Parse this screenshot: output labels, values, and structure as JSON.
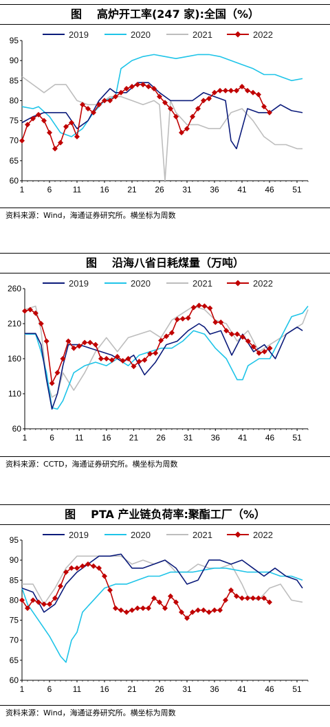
{
  "colors": {
    "2019": "#0a1a7a",
    "2020": "#1ec4e8",
    "2021": "#bdbdbd",
    "2022": "#c00000"
  },
  "chart_data": [
    {
      "type": "line",
      "figure_label": "图",
      "title": "高炉开工率(247 家):全国（%）",
      "source": "资料来源：Wind，海通证券研究所。横坐标为周数",
      "ylim": [
        60,
        95
      ],
      "yticks": [
        "60",
        "65",
        "70",
        "75",
        "80",
        "85",
        "90",
        "95"
      ],
      "xlim": [
        1,
        53
      ],
      "xticks": [
        "1",
        "6",
        "11",
        "16",
        "21",
        "26",
        "31",
        "36",
        "41",
        "46",
        "51"
      ],
      "legend": [
        "2019",
        "2020",
        "2021",
        "2022"
      ],
      "series": [
        {
          "name": "2019",
          "x": [
            1,
            3,
            5,
            7,
            9,
            11,
            13,
            15,
            17,
            18,
            20,
            22,
            24,
            26,
            28,
            30,
            32,
            34,
            36,
            38,
            39,
            40,
            42,
            44,
            46,
            48,
            50,
            52
          ],
          "y": [
            74.5,
            76,
            77,
            77,
            77,
            73,
            75,
            80,
            83,
            82,
            82,
            84.5,
            84.5,
            82,
            80,
            80,
            80,
            82,
            81,
            80,
            70,
            68,
            78,
            77,
            77,
            79,
            77.5,
            77
          ]
        },
        {
          "name": "2020",
          "x": [
            1,
            3,
            4,
            6,
            8,
            10,
            12,
            14,
            16,
            18,
            19,
            21,
            23,
            25,
            27,
            29,
            31,
            33,
            35,
            37,
            39,
            41,
            43,
            45,
            47,
            49,
            50,
            52
          ],
          "y": [
            78.5,
            78,
            78.5,
            76,
            72,
            71,
            73,
            77,
            80,
            81,
            88,
            90,
            91,
            91.5,
            91,
            90.5,
            91,
            91.5,
            91.5,
            91,
            90,
            89,
            88,
            86.5,
            86.5,
            85.5,
            85,
            85.5
          ]
        },
        {
          "name": "2021",
          "x": [
            1,
            3,
            5,
            7,
            9,
            11,
            13,
            15,
            17,
            19,
            21,
            23,
            25,
            26,
            27,
            28,
            29,
            31,
            33,
            35,
            37,
            39,
            41,
            43,
            45,
            47,
            49,
            51,
            52
          ],
          "y": [
            86,
            84,
            82,
            84,
            84,
            80,
            79,
            79,
            81,
            81,
            80,
            79,
            80,
            79,
            60,
            80,
            77,
            74,
            74,
            73,
            73,
            77,
            78,
            75,
            71,
            69,
            69,
            68,
            68
          ]
        },
        {
          "name": "2022",
          "x": [
            1,
            2,
            3,
            4,
            5,
            6,
            7,
            8,
            9,
            10,
            11,
            12,
            13,
            14,
            15,
            16,
            17,
            18,
            19,
            20,
            21,
            22,
            23,
            24,
            25,
            26,
            27,
            28,
            29,
            30,
            31,
            32,
            33,
            34,
            35,
            36,
            37,
            38,
            39,
            40,
            41,
            42,
            43,
            44,
            45,
            46
          ],
          "y": [
            70,
            74,
            75.5,
            76.5,
            75,
            72,
            68,
            69.5,
            73.5,
            74.5,
            71,
            79,
            78,
            77,
            79,
            80,
            80,
            81,
            82,
            83,
            83.5,
            84,
            84,
            83.5,
            83,
            81,
            79.5,
            78,
            76,
            72,
            73,
            76,
            78,
            80,
            80.5,
            82,
            82.5,
            82.5,
            82.5,
            82.5,
            83.5,
            82.5,
            82,
            81.5,
            78.5,
            77
          ]
        }
      ]
    },
    {
      "type": "line",
      "figure_label": "图",
      "title": "沿海八省日耗煤量（万吨）",
      "source": "资料来源：CCTD，海通证券研究所。横坐标为周数",
      "ylim": [
        60,
        260
      ],
      "yticks": [
        "60",
        "110",
        "160",
        "210",
        "260"
      ],
      "xlim": [
        1,
        53
      ],
      "xticks": [
        "1",
        "6",
        "11",
        "16",
        "21",
        "26",
        "31",
        "36",
        "41",
        "46",
        "51"
      ],
      "legend": [
        "2019",
        "2020",
        "2021",
        "2022"
      ],
      "series": [
        {
          "name": "2019",
          "x": [
            1,
            3,
            4,
            5,
            6,
            7,
            8,
            9,
            11,
            13,
            15,
            17,
            19,
            21,
            23,
            25,
            27,
            29,
            31,
            33,
            34,
            35,
            37,
            39,
            41,
            43,
            45,
            47,
            49,
            51,
            52
          ],
          "y": [
            196,
            196,
            180,
            130,
            88,
            110,
            150,
            180,
            180,
            175,
            170,
            165,
            155,
            165,
            137,
            155,
            180,
            185,
            200,
            210,
            205,
            195,
            200,
            165,
            195,
            170,
            180,
            160,
            195,
            205,
            200
          ]
        },
        {
          "name": "2020",
          "x": [
            1,
            3,
            4,
            5,
            6,
            7,
            8,
            10,
            12,
            14,
            16,
            18,
            20,
            22,
            24,
            26,
            28,
            30,
            32,
            34,
            36,
            38,
            40,
            41,
            42,
            44,
            46,
            48,
            50,
            52,
            53
          ],
          "y": [
            195,
            195,
            170,
            140,
            90,
            88,
            100,
            140,
            150,
            155,
            150,
            160,
            150,
            165,
            170,
            175,
            175,
            185,
            200,
            195,
            175,
            160,
            130,
            130,
            150,
            160,
            160,
            190,
            220,
            225,
            235
          ]
        },
        {
          "name": "2021",
          "x": [
            1,
            3,
            4,
            5,
            6,
            7,
            8,
            10,
            12,
            14,
            16,
            18,
            20,
            22,
            24,
            26,
            28,
            30,
            32,
            34,
            36,
            38,
            40,
            42,
            44,
            46,
            48,
            50,
            52,
            53
          ],
          "y": [
            230,
            235,
            200,
            130,
            105,
            110,
            140,
            115,
            140,
            170,
            190,
            170,
            190,
            195,
            200,
            190,
            215,
            225,
            235,
            230,
            215,
            210,
            185,
            200,
            170,
            180,
            190,
            200,
            210,
            230
          ]
        },
        {
          "name": "2022",
          "x": [
            1,
            2,
            3,
            4,
            5,
            6,
            7,
            8,
            9,
            10,
            11,
            12,
            13,
            14,
            15,
            16,
            17,
            18,
            19,
            20,
            21,
            22,
            23,
            24,
            25,
            26,
            27,
            28,
            29,
            30,
            31,
            32,
            33,
            34,
            35,
            36,
            37,
            38,
            39,
            40,
            41,
            42,
            43,
            44,
            45,
            46
          ],
          "y": [
            228,
            230,
            225,
            210,
            185,
            125,
            140,
            160,
            185,
            175,
            178,
            183,
            183,
            180,
            160,
            160,
            158,
            163,
            157,
            160,
            149,
            156,
            158,
            167,
            168,
            186,
            192,
            197,
            216,
            217,
            218,
            233,
            236,
            235,
            232,
            212,
            212,
            200,
            195,
            195,
            191,
            185,
            177,
            168,
            170,
            175
          ]
        }
      ]
    },
    {
      "type": "line",
      "figure_label": "图",
      "title": "PTA 产业链负荷率:聚酯工厂（%）",
      "source": "资料来源：Wind，海通证券研究所。横坐标为周数",
      "ylim": [
        60,
        95
      ],
      "yticks": [
        "60",
        "65",
        "70",
        "75",
        "80",
        "85",
        "90",
        "95"
      ],
      "xlim": [
        1,
        53
      ],
      "xticks": [
        "1",
        "6",
        "11",
        "16",
        "21",
        "26",
        "31",
        "36",
        "41",
        "46",
        "51"
      ],
      "legend": [
        "2019",
        "2020",
        "2021",
        "2022"
      ],
      "series": [
        {
          "name": "2019",
          "x": [
            1,
            3,
            5,
            7,
            9,
            11,
            13,
            15,
            17,
            19,
            21,
            23,
            25,
            27,
            29,
            31,
            33,
            35,
            37,
            39,
            41,
            43,
            45,
            47,
            49,
            51,
            52
          ],
          "y": [
            83,
            82,
            77,
            79,
            84,
            87,
            89,
            91,
            91,
            91.5,
            88,
            88,
            89,
            90,
            88,
            84,
            85,
            90,
            90,
            89,
            90,
            88,
            86,
            88,
            86,
            85,
            83
          ]
        },
        {
          "name": "2020",
          "x": [
            1,
            2,
            4,
            6,
            8,
            9,
            10,
            11,
            12,
            14,
            16,
            18,
            20,
            22,
            24,
            26,
            28,
            30,
            32,
            34,
            36,
            38,
            40,
            42,
            44,
            46,
            48,
            50,
            52
          ],
          "y": [
            83,
            79,
            75,
            71,
            66,
            64.5,
            70,
            72,
            77,
            80,
            83,
            84,
            84,
            85,
            86,
            86,
            87,
            87,
            87,
            87.5,
            88,
            88,
            87.5,
            87,
            87,
            87,
            86,
            86,
            85
          ]
        },
        {
          "name": "2021",
          "x": [
            1,
            3,
            5,
            7,
            9,
            11,
            13,
            15,
            17,
            19,
            21,
            23,
            25,
            27,
            29,
            31,
            33,
            35,
            37,
            39,
            41,
            42,
            44,
            46,
            48,
            50,
            52
          ],
          "y": [
            84,
            84,
            79,
            83,
            88,
            91,
            91,
            91,
            91,
            91,
            89,
            90,
            89,
            90,
            87,
            87,
            89,
            88,
            88,
            89,
            84,
            81,
            80,
            83,
            84,
            80,
            79.5
          ]
        },
        {
          "name": "2022",
          "x": [
            1,
            2,
            3,
            4,
            5,
            6,
            7,
            8,
            9,
            10,
            11,
            12,
            13,
            14,
            15,
            16,
            17,
            18,
            19,
            20,
            21,
            22,
            23,
            24,
            25,
            26,
            27,
            28,
            29,
            30,
            31,
            32,
            33,
            34,
            35,
            36,
            37,
            38,
            39,
            40,
            41,
            42,
            43,
            44,
            45,
            46
          ],
          "y": [
            80,
            78,
            80,
            79.5,
            79,
            79,
            80.5,
            83.5,
            87,
            88,
            88,
            88.5,
            89,
            88.5,
            88,
            86,
            82.5,
            78,
            77.5,
            77,
            77.5,
            78,
            78,
            78,
            80.5,
            79.5,
            78,
            81,
            79.5,
            77,
            75.5,
            77,
            77.5,
            77.5,
            77,
            77.5,
            77.5,
            80,
            82.5,
            81,
            80.5,
            80.5,
            80.5,
            80.5,
            80.5,
            79.5
          ]
        }
      ]
    }
  ]
}
